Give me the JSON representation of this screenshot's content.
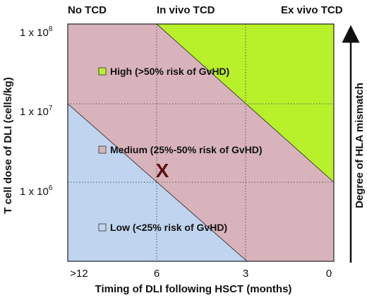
{
  "header": {
    "col_left": "No TCD",
    "col_mid": "In vivo TCD",
    "col_right": "Ex vivo TCD"
  },
  "y_axis": {
    "label": "T cell dose of DLI (cells/kg)",
    "ticks": [
      {
        "base": "1 x 10",
        "exp": "8"
      },
      {
        "base": "1 x 10",
        "exp": "7"
      },
      {
        "base": "1 x 10",
        "exp": "6"
      }
    ]
  },
  "x_axis": {
    "label": "Timing of DLI following HSCT (months)",
    "ticks": [
      ">12",
      "6",
      "3",
      "0"
    ]
  },
  "right_axis": {
    "label": "Degree of HLA mismatch"
  },
  "zones": [
    {
      "key": "high",
      "label": "High (>50% risk of GvHD)",
      "color": "#b8f02a"
    },
    {
      "key": "medium",
      "label": "Medium (25%-50% risk of GvHD)",
      "color": "#d9b3bc"
    },
    {
      "key": "low",
      "label": "Low (<25% risk of GvHD)",
      "color": "#c0d4ef"
    }
  ],
  "marker": {
    "symbol": "X",
    "color": "#5a1010"
  },
  "colors": {
    "grid": "#555555",
    "frame": "#222222",
    "text": "#111111"
  }
}
